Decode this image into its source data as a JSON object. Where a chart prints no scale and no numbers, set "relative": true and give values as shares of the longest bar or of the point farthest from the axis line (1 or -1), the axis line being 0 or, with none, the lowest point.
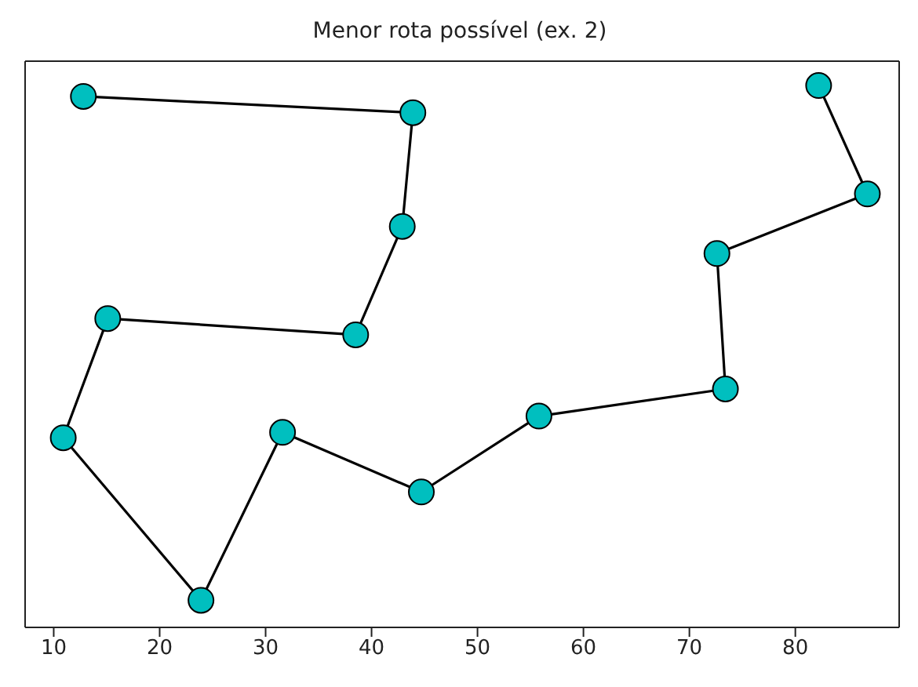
{
  "chart_data": {
    "type": "line",
    "title": "Menor rota possível (ex. 2)",
    "relative": true,
    "tick_labels": "x",
    "marker": "circle",
    "line_style": "solid",
    "xlim": [
      7.3,
      89.8
    ],
    "xticks": [
      10,
      20,
      30,
      40,
      50,
      60,
      70,
      80
    ],
    "series": [
      {
        "color": "#00bfbf",
        "x": [
          12.8,
          43.9,
          42.9,
          38.5,
          15.1,
          10.9,
          23.9,
          31.6,
          44.7,
          55.8,
          73.4,
          72.6,
          86.8,
          82.2
        ],
        "values": [
          0.98,
          0.95,
          0.74,
          0.54,
          0.57,
          0.35,
          0.05,
          0.36,
          0.25,
          0.39,
          0.44,
          0.69,
          0.8,
          1.0
        ]
      }
    ]
  }
}
